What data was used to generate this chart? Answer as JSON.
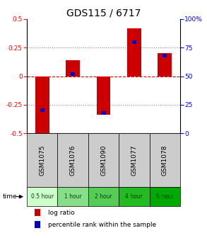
{
  "title": "GDS115 / 6717",
  "samples": [
    "GSM1075",
    "GSM1076",
    "GSM1090",
    "GSM1077",
    "GSM1078"
  ],
  "time_labels": [
    "0.5 hour",
    "1 hour",
    "2 hour",
    "4 hour",
    "6 hour"
  ],
  "log_ratios": [
    -0.52,
    0.14,
    -0.34,
    0.42,
    0.2
  ],
  "percentile_ranks": [
    20,
    52,
    18,
    80,
    68
  ],
  "bar_color_red": "#cc0000",
  "bar_color_blue": "#0000cc",
  "ylim": [
    -0.5,
    0.5
  ],
  "right_ylim": [
    0,
    100
  ],
  "yticks_left": [
    -0.5,
    -0.25,
    0,
    0.25,
    0.5
  ],
  "yticks_right": [
    0,
    25,
    50,
    75,
    100
  ],
  "bar_width": 0.45,
  "pct_bar_width": 0.15,
  "title_fontsize": 10,
  "tick_fontsize": 6.5,
  "sample_bg_color": "#cccccc",
  "time_bg_colors": [
    "#ccffcc",
    "#88dd88",
    "#55cc55",
    "#22bb22",
    "#00aa00"
  ],
  "time_text_color": "#004400",
  "legend_fontsize": 6.5
}
